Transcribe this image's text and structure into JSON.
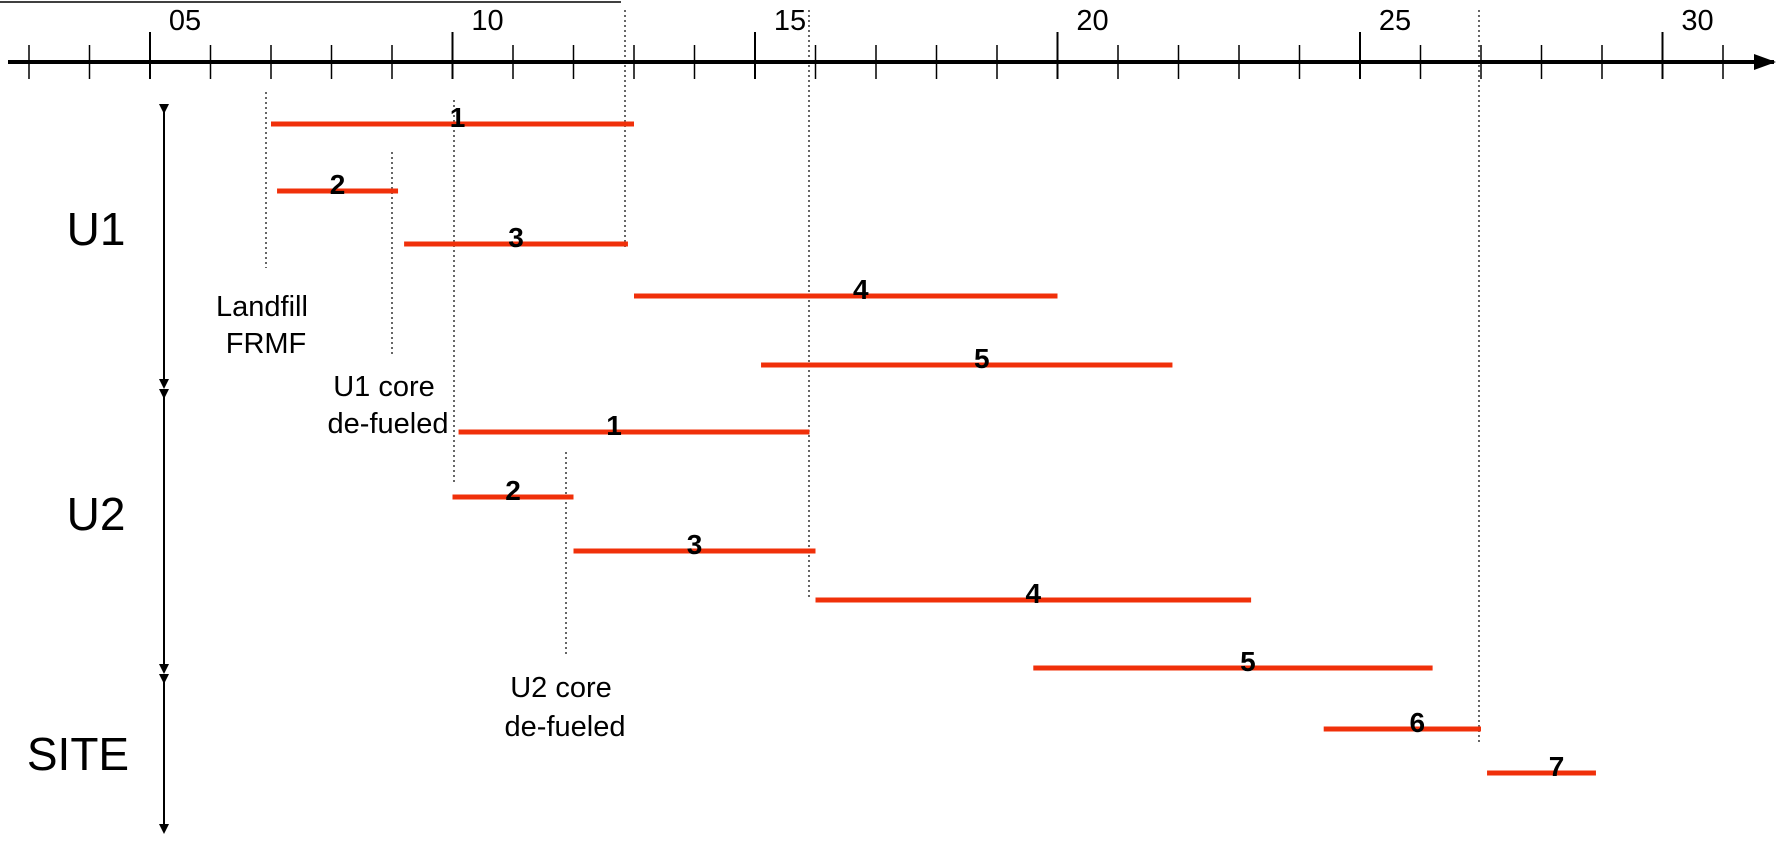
{
  "chart_data": {
    "type": "gantt",
    "axis": {
      "range": [
        2003,
        2031
      ],
      "major_ticks": [
        2005,
        2010,
        2015,
        2020,
        2025,
        2030
      ],
      "tick_labels": [
        "05",
        "10",
        "15",
        "20",
        "25",
        "30"
      ]
    },
    "groups": [
      {
        "key": "u1",
        "label": "U1"
      },
      {
        "key": "u2",
        "label": "U2"
      },
      {
        "key": "site",
        "label": "SITE"
      }
    ],
    "bars": [
      {
        "group": "u1",
        "label": "1",
        "start": 2007.0,
        "end": 2013.0
      },
      {
        "group": "u1",
        "label": "2",
        "start": 2007.1,
        "end": 2009.1
      },
      {
        "group": "u1",
        "label": "3",
        "start": 2009.2,
        "end": 2012.9
      },
      {
        "group": "u1",
        "label": "4",
        "start": 2013.0,
        "end": 2020.0
      },
      {
        "group": "u1",
        "label": "5",
        "start": 2015.1,
        "end": 2021.9
      },
      {
        "group": "u2",
        "label": "1",
        "start": 2010.1,
        "end": 2015.9
      },
      {
        "group": "u2",
        "label": "2",
        "start": 2010.0,
        "end": 2012.0
      },
      {
        "group": "u2",
        "label": "3",
        "start": 2012.0,
        "end": 2016.0
      },
      {
        "group": "u2",
        "label": "4",
        "start": 2016.0,
        "end": 2023.2
      },
      {
        "group": "site",
        "label": "5",
        "start": 2019.6,
        "end": 2026.2
      },
      {
        "group": "site",
        "label": "6",
        "start": 2024.4,
        "end": 2027.0
      },
      {
        "group": "site",
        "label": "7",
        "start": 2027.1,
        "end": 2028.9
      }
    ],
    "milestones": [
      {
        "year": 2007.0,
        "label": [
          "Landfill",
          "FRMF"
        ]
      },
      {
        "year": 2009.1,
        "label": [
          "U1 core",
          "de-fueled"
        ]
      },
      {
        "year": 2012.0,
        "label": [
          "U2 core",
          "de-fueled"
        ]
      }
    ]
  }
}
